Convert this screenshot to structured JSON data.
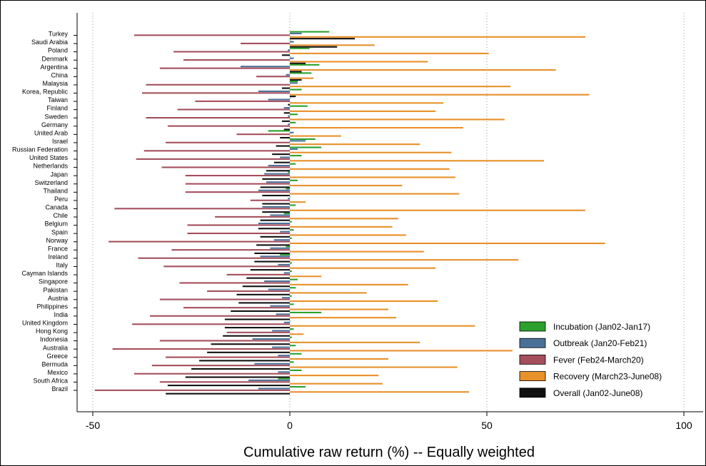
{
  "chart_data": {
    "type": "bar",
    "orientation": "horizontal",
    "xlabel": "Cumulative raw return (%) -- Equally weighted",
    "ylabel": "",
    "xlim": [
      -50,
      100
    ],
    "xticks": [
      "-50",
      "0",
      "50",
      "100"
    ],
    "grid": "vertical dotted",
    "legend_position": "bottom-right",
    "categories": [
      "Turkey",
      "Saudi Arabia",
      "Poland",
      "Denmark",
      "Argentina",
      "China",
      "Malaysia",
      "Korea, Republic",
      "Taiwan",
      "Finland",
      "Sweden",
      "Germany",
      "United Arab",
      "Israel",
      "Russian Federation",
      "United States",
      "Netherlands",
      "Japan",
      "Switzerland",
      "Thailand",
      "Peru",
      "Canada",
      "Chile",
      "Belgium",
      "Spain",
      "Norway",
      "France",
      "Ireland",
      "Italy",
      "Cayman Islands",
      "Singapore",
      "Pakistan",
      "Austria",
      "Philippines",
      "India",
      "United Kingdom",
      "Hong Kong",
      "Indonesia",
      "Australia",
      "Greece",
      "Bermuda",
      "Mexico",
      "South Africa",
      "Brazil"
    ],
    "series": [
      {
        "name": "Incubation (Jan02-Jan17)",
        "color": "#2ca02c",
        "values": [
          10,
          0,
          5,
          0,
          7.5,
          5.5,
          2,
          3,
          0,
          4.5,
          2,
          1.5,
          -5.5,
          6.5,
          8,
          3,
          1.5,
          -0.5,
          2,
          -1,
          0,
          1.5,
          -1.5,
          0.5,
          1,
          0.5,
          -1,
          -2.5,
          0.5,
          0.5,
          2,
          1.5,
          0.5,
          1,
          8,
          0,
          1,
          0.5,
          1.5,
          3,
          1,
          3,
          -3,
          4
        ]
      },
      {
        "name": "Outbreak (Jan20-Feb21)",
        "color": "#4a7098",
        "values": [
          3,
          1,
          -0.5,
          1,
          -12.5,
          -1,
          2,
          -8,
          -5.5,
          -1.5,
          -0.5,
          -0.5,
          1,
          4,
          2,
          -2.5,
          -5.5,
          -6.5,
          -6,
          -8,
          -0.5,
          -7,
          -5,
          -8,
          -2.5,
          -4,
          -5,
          -7.5,
          -3,
          -1.5,
          -6.5,
          -5.5,
          -2,
          -5,
          -3.5,
          -1.5,
          -4.5,
          -9.5,
          -4.5,
          -3,
          -9,
          -3,
          -10.5,
          -8
        ]
      },
      {
        "name": "Fever (Feb24-March20)",
        "color": "#a54e5c",
        "values": [
          -39.5,
          -12.5,
          -29.5,
          -27,
          -33,
          -8.5,
          -36.5,
          -37.5,
          -24,
          -28.5,
          -36.5,
          -31,
          -13.5,
          -31.5,
          -37,
          -39,
          -32.5,
          -26.5,
          -26.5,
          -26.5,
          -10,
          -44.5,
          -19,
          -26,
          -26,
          -46,
          -30,
          -38.5,
          -32,
          -16,
          -28,
          -21,
          -33,
          -27,
          -35.5,
          -40,
          -16,
          -33,
          -45,
          -31.5,
          -35,
          -39.5,
          -33,
          -49.5
        ]
      },
      {
        "name": "Recovery (March23-June08)",
        "color": "#e8902a",
        "values": [
          75,
          21.5,
          50.5,
          35,
          67.5,
          6,
          56,
          76,
          39,
          37,
          54.5,
          44,
          13,
          33,
          41,
          64.5,
          40.5,
          42,
          28.5,
          43,
          4,
          75,
          27.5,
          26,
          29.5,
          80,
          34,
          58,
          37,
          8,
          30,
          19.5,
          37.5,
          25,
          27,
          47,
          3.5,
          33,
          56.5,
          25,
          42.5,
          22.5,
          23.5,
          45.5
        ]
      },
      {
        "name": "Overall (Jan02-June08)",
        "color": "#111111",
        "values": [
          16.5,
          12,
          -2,
          4,
          3,
          3,
          -2,
          1.5,
          -0.5,
          -1.5,
          -2,
          -1.5,
          -2.5,
          -3.5,
          -4.5,
          -4,
          -6,
          -7,
          -7.5,
          -7,
          -7,
          -7,
          -7.5,
          -8,
          -7.5,
          -8.5,
          -9,
          -9,
          -10,
          -11,
          -12,
          -13.5,
          -13,
          -15,
          -16.5,
          -16.5,
          -17,
          -20,
          -21,
          -23,
          -25,
          -26.5,
          -31,
          -31.5
        ]
      }
    ]
  }
}
